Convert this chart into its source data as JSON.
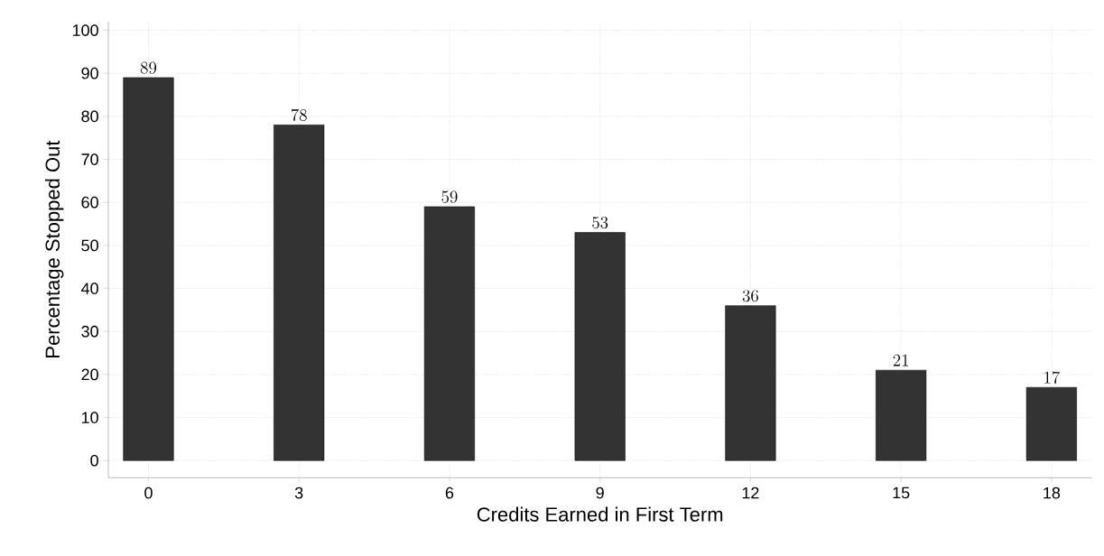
{
  "chart_data": {
    "type": "bar",
    "xlabel": "Credits Earned in First Term",
    "ylabel": "Percentage Stopped Out",
    "x": [
      0,
      3,
      6,
      9,
      12,
      15,
      18
    ],
    "values": [
      89,
      78,
      59,
      53,
      36,
      21,
      17
    ],
    "color": "#333333",
    "xlim": [
      -0.8,
      18.8
    ],
    "ylim": [
      -4,
      102
    ],
    "xticks": [
      0,
      3,
      6,
      9,
      12,
      15,
      18
    ],
    "yticks": [
      0,
      10,
      20,
      30,
      40,
      50,
      60,
      70,
      80,
      90,
      100
    ],
    "grid": true,
    "data_labels": true
  }
}
